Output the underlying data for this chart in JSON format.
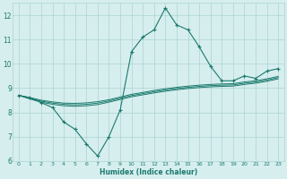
{
  "xlabel": "Humidex (Indice chaleur)",
  "background_color": "#d7eeee",
  "grid_color": "#aad4d4",
  "line_color": "#1a7a6e",
  "x_values": [
    0,
    1,
    2,
    3,
    4,
    5,
    6,
    7,
    8,
    9,
    10,
    11,
    12,
    13,
    14,
    15,
    16,
    17,
    18,
    19,
    20,
    21,
    22,
    23
  ],
  "main_line": [
    8.7,
    8.6,
    8.4,
    8.2,
    7.6,
    7.3,
    6.7,
    6.2,
    7.0,
    8.1,
    10.5,
    11.1,
    11.4,
    12.3,
    11.6,
    11.4,
    10.7,
    9.9,
    9.3,
    9.3,
    9.5,
    9.4,
    9.7,
    9.8
  ],
  "line2": [
    8.7,
    8.55,
    8.42,
    8.33,
    8.27,
    8.25,
    8.27,
    8.32,
    8.42,
    8.53,
    8.64,
    8.72,
    8.8,
    8.87,
    8.93,
    8.98,
    9.02,
    9.05,
    9.07,
    9.08,
    9.15,
    9.2,
    9.28,
    9.38
  ],
  "line3": [
    8.7,
    8.58,
    8.46,
    8.38,
    8.33,
    8.31,
    8.33,
    8.38,
    8.47,
    8.58,
    8.69,
    8.77,
    8.85,
    8.92,
    8.98,
    9.03,
    9.07,
    9.1,
    9.12,
    9.13,
    9.2,
    9.25,
    9.33,
    9.43
  ],
  "line4": [
    8.7,
    8.61,
    8.5,
    8.43,
    8.38,
    8.37,
    8.39,
    8.44,
    8.52,
    8.63,
    8.74,
    8.82,
    8.9,
    8.97,
    9.03,
    9.08,
    9.12,
    9.15,
    9.17,
    9.18,
    9.25,
    9.3,
    9.38,
    9.48
  ],
  "ylim": [
    6,
    12.5
  ],
  "yticks": [
    6,
    7,
    8,
    9,
    10,
    11,
    12
  ],
  "xlim": [
    -0.5,
    23.5
  ],
  "xtick_labels": [
    "0",
    "1",
    "2",
    "3",
    "4",
    "5",
    "6",
    "7",
    "8",
    "9",
    "10",
    "11",
    "12",
    "13",
    "14",
    "15",
    "16",
    "17",
    "18",
    "19",
    "20",
    "21",
    "22",
    "23"
  ]
}
